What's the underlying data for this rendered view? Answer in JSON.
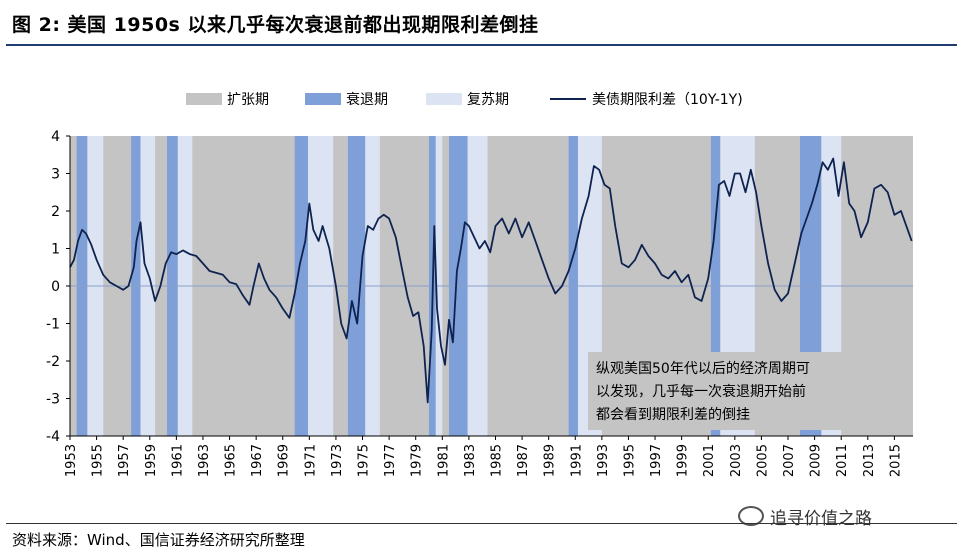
{
  "figure_title": "图  2:  美国 1950s 以来几乎每次衰退前都出现期限利差倒挂",
  "source_note": "资料来源：Wind、国信证券经济研究所整理",
  "watermark": "追寻价值之路",
  "colors": {
    "expansion": "#c4c4c4",
    "recession": "#7e9fd8",
    "recovery": "#dce4f4",
    "line": "#0f2350",
    "axis": "#000000",
    "zero_line": "#8aa0c8",
    "title_rule": "#1f3c6e"
  },
  "chart_data": {
    "type": "line",
    "title": "",
    "xlabel": "",
    "ylabel": "",
    "xlim": [
      1953,
      2016.4
    ],
    "ylim": [
      -4,
      4
    ],
    "yticks": [
      4,
      3,
      2,
      1,
      0,
      -1,
      -2,
      -3,
      -4
    ],
    "xtick_labels": [
      "1953",
      "1955",
      "1957",
      "1959",
      "1961",
      "1963",
      "1965",
      "1967",
      "1969",
      "1971",
      "1973",
      "1975",
      "1977",
      "1979",
      "1981",
      "1983",
      "1985",
      "1987",
      "1989",
      "1991",
      "1993",
      "1995",
      "1997",
      "1999",
      "2001",
      "2003",
      "2005",
      "2007",
      "2009",
      "2011",
      "2013",
      "2015"
    ],
    "legend": {
      "expansion_label": "扩张期",
      "recession_label": "衰退期",
      "recovery_label": "复苏期",
      "series_label": "美债期限利差（10Y-1Y)",
      "placement": "top"
    },
    "annotation": [
      "纵观美国50年代以后的经济周期可",
      "以发现，几乎每一次衰退期开始前",
      "都会看到期限利差的倒挂"
    ],
    "recessions": [
      [
        1953.5,
        1954.3
      ],
      [
        1957.6,
        1958.3
      ],
      [
        1960.3,
        1961.1
      ],
      [
        1969.9,
        1970.9
      ],
      [
        1973.9,
        1975.2
      ],
      [
        1980.0,
        1980.5
      ],
      [
        1981.5,
        1982.9
      ],
      [
        1990.5,
        1991.2
      ],
      [
        2001.2,
        2001.9
      ],
      [
        2007.9,
        2009.5
      ]
    ],
    "recoveries": [
      [
        1954.3,
        1955.5
      ],
      [
        1958.3,
        1959.4
      ],
      [
        1961.1,
        1962.2
      ],
      [
        1970.9,
        1972.8
      ],
      [
        1975.2,
        1976.3
      ],
      [
        1980.5,
        1981.0
      ],
      [
        1982.9,
        1984.4
      ],
      [
        1991.2,
        1993.0
      ],
      [
        2001.9,
        2004.5
      ],
      [
        2009.5,
        2011.0
      ]
    ],
    "series": [
      {
        "name": "美债期限利差（10Y-1Y)",
        "x": [
          1953.0,
          1953.3,
          1953.6,
          1953.9,
          1954.2,
          1954.6,
          1955.0,
          1955.5,
          1956.0,
          1956.5,
          1957.0,
          1957.4,
          1957.8,
          1958.0,
          1958.3,
          1958.6,
          1959.0,
          1959.4,
          1959.8,
          1960.2,
          1960.6,
          1961.0,
          1961.5,
          1962.0,
          1962.5,
          1963.0,
          1963.5,
          1964.0,
          1964.5,
          1965.0,
          1965.5,
          1966.0,
          1966.5,
          1966.8,
          1967.2,
          1967.6,
          1968.0,
          1968.5,
          1969.0,
          1969.5,
          1969.9,
          1970.3,
          1970.7,
          1971.0,
          1971.3,
          1971.7,
          1972.0,
          1972.5,
          1973.0,
          1973.4,
          1973.8,
          1974.2,
          1974.6,
          1975.0,
          1975.4,
          1975.8,
          1976.2,
          1976.6,
          1977.0,
          1977.5,
          1978.0,
          1978.4,
          1978.8,
          1979.2,
          1979.6,
          1979.9,
          1980.2,
          1980.4,
          1980.6,
          1980.9,
          1981.2,
          1981.5,
          1981.8,
          1982.1,
          1982.4,
          1982.7,
          1983.0,
          1983.4,
          1983.8,
          1984.2,
          1984.6,
          1985.0,
          1985.5,
          1986.0,
          1986.5,
          1987.0,
          1987.5,
          1988.0,
          1988.5,
          1989.0,
          1989.5,
          1990.0,
          1990.5,
          1991.0,
          1991.5,
          1992.0,
          1992.4,
          1992.8,
          1993.2,
          1993.6,
          1994.0,
          1994.5,
          1995.0,
          1995.5,
          1996.0,
          1996.5,
          1997.0,
          1997.5,
          1998.0,
          1998.5,
          1999.0,
          1999.5,
          2000.0,
          2000.5,
          2001.0,
          2001.4,
          2001.8,
          2002.2,
          2002.6,
          2003.0,
          2003.4,
          2003.8,
          2004.2,
          2004.6,
          2005.0,
          2005.5,
          2006.0,
          2006.5,
          2007.0,
          2007.5,
          2008.0,
          2008.4,
          2008.8,
          2009.2,
          2009.6,
          2010.0,
          2010.4,
          2010.8,
          2011.2,
          2011.6,
          2012.0,
          2012.5,
          2013.0,
          2013.5,
          2014.0,
          2014.5,
          2015.0,
          2015.5,
          2016.0,
          2016.3
        ],
        "values": [
          0.5,
          0.7,
          1.2,
          1.5,
          1.4,
          1.1,
          0.7,
          0.3,
          0.1,
          0.0,
          -0.1,
          0.0,
          0.5,
          1.2,
          1.7,
          0.6,
          0.2,
          -0.4,
          0.0,
          0.6,
          0.9,
          0.85,
          0.95,
          0.85,
          0.8,
          0.6,
          0.4,
          0.35,
          0.3,
          0.1,
          0.05,
          -0.25,
          -0.5,
          0.0,
          0.6,
          0.2,
          -0.1,
          -0.3,
          -0.6,
          -0.85,
          -0.2,
          0.6,
          1.2,
          2.2,
          1.5,
          1.2,
          1.6,
          1.0,
          0.0,
          -1.0,
          -1.4,
          -0.4,
          -1.0,
          0.8,
          1.6,
          1.5,
          1.8,
          1.9,
          1.8,
          1.3,
          0.4,
          -0.3,
          -0.8,
          -0.7,
          -1.6,
          -3.1,
          -1.2,
          1.6,
          -0.6,
          -1.6,
          -2.1,
          -0.9,
          -1.5,
          0.4,
          1.0,
          1.7,
          1.6,
          1.3,
          1.0,
          1.2,
          0.9,
          1.6,
          1.8,
          1.4,
          1.8,
          1.3,
          1.7,
          1.2,
          0.7,
          0.2,
          -0.2,
          0.0,
          0.4,
          1.0,
          1.8,
          2.4,
          3.2,
          3.1,
          2.7,
          2.6,
          1.6,
          0.6,
          0.5,
          0.7,
          1.1,
          0.8,
          0.6,
          0.3,
          0.2,
          0.4,
          0.1,
          0.3,
          -0.3,
          -0.4,
          0.2,
          1.2,
          2.7,
          2.8,
          2.4,
          3.0,
          3.0,
          2.5,
          3.1,
          2.5,
          1.6,
          0.6,
          -0.1,
          -0.4,
          -0.2,
          0.6,
          1.4,
          1.8,
          2.2,
          2.7,
          3.3,
          3.1,
          3.4,
          2.4,
          3.3,
          2.2,
          2.0,
          1.3,
          1.7,
          2.6,
          2.7,
          2.5,
          1.9,
          2.0,
          1.5,
          1.2
        ]
      }
    ]
  }
}
